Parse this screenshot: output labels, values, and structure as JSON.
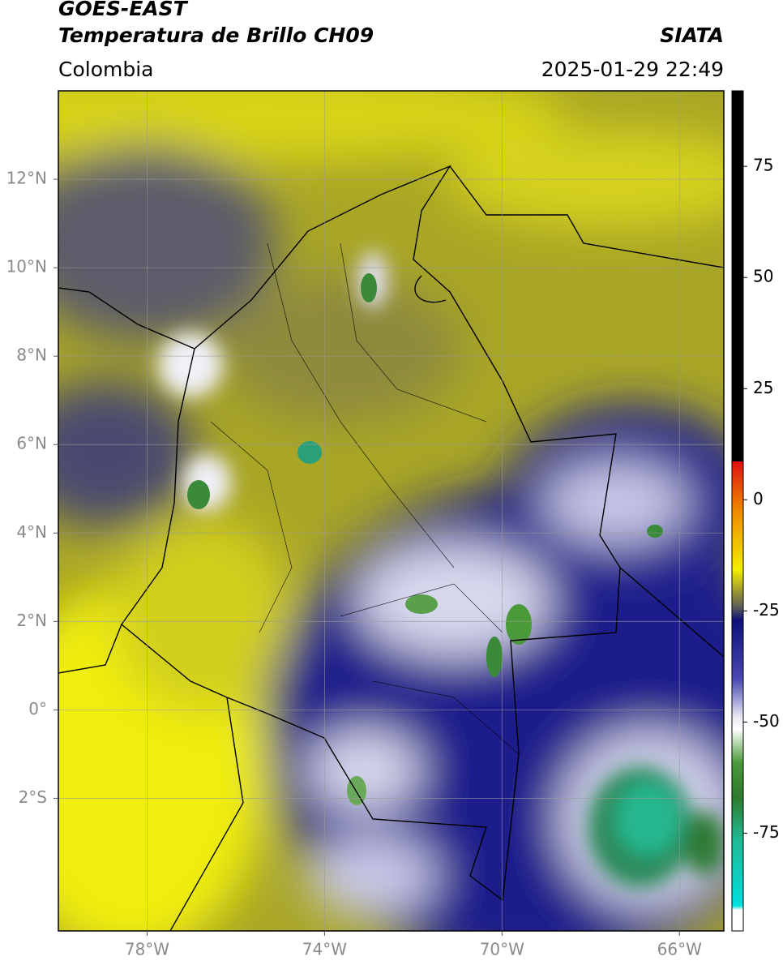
{
  "header": {
    "title": "GOES-EAST",
    "subtitle": "Temperatura de Brillo CH09",
    "source": "SIATA",
    "region": "Colombia",
    "datetime": "2025-01-29 22:49"
  },
  "map": {
    "xlim": [
      -80,
      -65
    ],
    "ylim": [
      -5,
      14
    ],
    "xticks": [
      {
        "value": -78,
        "label": "78°W"
      },
      {
        "value": -74,
        "label": "74°W"
      },
      {
        "value": -70,
        "label": "70°W"
      },
      {
        "value": -66,
        "label": "66°W"
      }
    ],
    "yticks": [
      {
        "value": 12,
        "label": "12°N"
      },
      {
        "value": 10,
        "label": "10°N"
      },
      {
        "value": 8,
        "label": "8°N"
      },
      {
        "value": 6,
        "label": "6°N"
      },
      {
        "value": 4,
        "label": "4°N"
      },
      {
        "value": 2,
        "label": "2°N"
      },
      {
        "value": 0,
        "label": "0°"
      },
      {
        "value": -2,
        "label": "2°S"
      }
    ],
    "grid": true
  },
  "colorbar": {
    "clim": [
      -97,
      92
    ],
    "ticks": [
      75,
      50,
      25,
      0,
      -25,
      -50,
      -75
    ]
  }
}
